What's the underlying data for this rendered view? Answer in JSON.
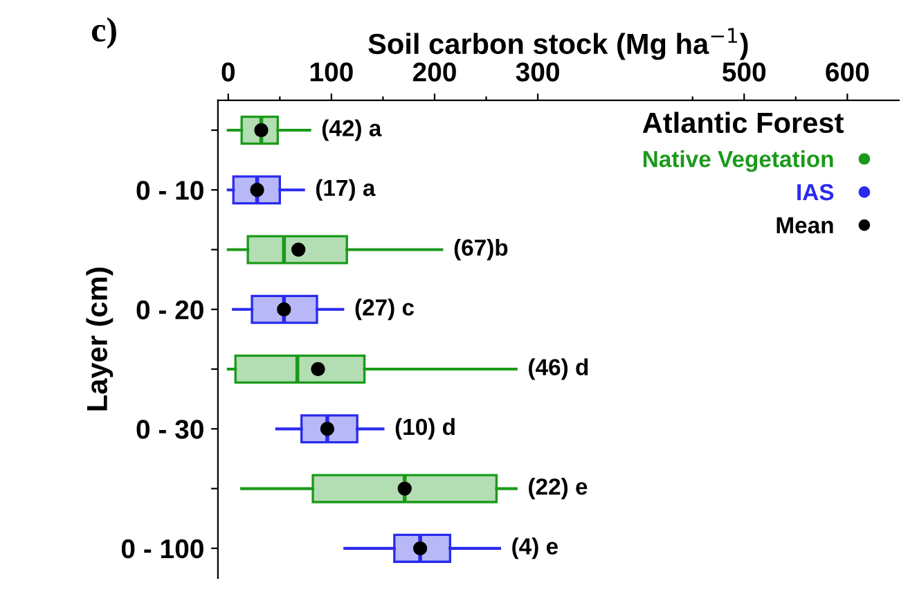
{
  "chart_data": {
    "type": "box",
    "title": "c)",
    "xlabel": "Soil carbon stock (Mg ha$^{−1}$)",
    "ylabel": "Layer (cm)",
    "orientation": "horizontal",
    "categories": [
      null,
      "0 - 10",
      null,
      "0 - 20",
      null,
      "0 - 30",
      null,
      "0 - 100"
    ],
    "xlim": [
      -10,
      650
    ],
    "xticks": [
      0,
      {
        "value": 50,
        "label": null
      },
      100,
      {
        "value": 150,
        "label": null
      },
      200,
      {
        "value": 250,
        "label": null
      },
      300,
      {
        "value": 450,
        "label": null
      },
      500,
      {
        "value": 550,
        "label": null
      },
      600
    ],
    "grid": false,
    "legend": "top right",
    "legend_title": "Atlantic Forest",
    "marker": "circle",
    "series": [
      {
        "name": "Native Vegetation",
        "color": "#1a9a1a",
        "boxes": [
          {
            "low": 0,
            "q1": 13,
            "median": 32,
            "q3": 48,
            "high": 79
          },
          null,
          {
            "low": 0,
            "q1": 19,
            "median": 54,
            "q3": 115,
            "high": 207
          },
          null,
          {
            "low": 0,
            "q1": 7,
            "median": 67,
            "q3": 132,
            "high": 279
          },
          null,
          {
            "low": 13,
            "q1": 82,
            "median": 171,
            "q3": 260,
            "high": 279
          },
          null
        ]
      },
      {
        "name": "IAS",
        "color": "#2a2aee",
        "boxes": [
          null,
          {
            "low": 0,
            "q1": 5,
            "median": 28,
            "q3": 50,
            "high": 73
          },
          null,
          {
            "low": 5,
            "q1": 23,
            "median": 54,
            "q3": 86,
            "high": 111
          },
          null,
          {
            "low": 47,
            "q1": 71,
            "median": 96,
            "q3": 125,
            "high": 150
          },
          null,
          {
            "low": 113,
            "q1": 161,
            "median": 186,
            "q3": 215,
            "high": 263
          }
        ]
      },
      {
        "name": "Mean",
        "color": "#000000",
        "type": "scatter",
        "values": [
          32,
          28,
          68,
          54,
          87,
          96,
          171,
          186
        ]
      }
    ],
    "annotations": [
      "(42) a",
      "(17) a",
      "(67)b",
      "(27) c",
      "(46) d",
      "(10) d",
      "(22) e",
      "(4) e"
    ]
  }
}
